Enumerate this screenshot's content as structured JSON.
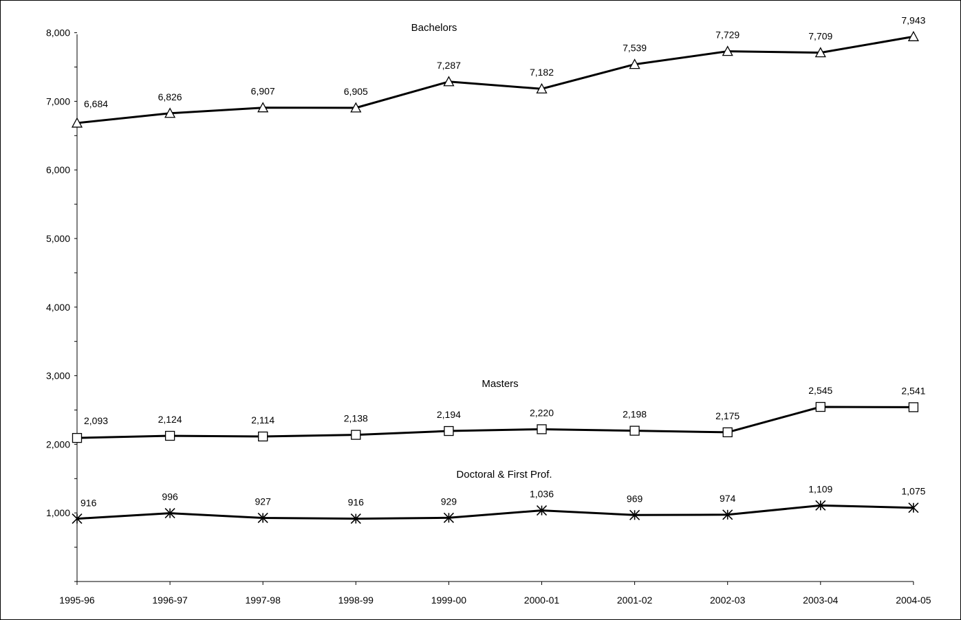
{
  "chart_data": {
    "type": "line",
    "categories": [
      "1995-96",
      "1996-97",
      "1997-98",
      "1998-99",
      "1999-00",
      "2000-01",
      "2001-02",
      "2002-03",
      "2003-04",
      "2004-05"
    ],
    "ylim": [
      0,
      8000
    ],
    "yticks": [
      1000,
      2000,
      3000,
      4000,
      5000,
      6000,
      7000,
      8000
    ],
    "ytick_labels": [
      "1,000",
      "2,000",
      "3,000",
      "4,000",
      "5,000",
      "6,000",
      "7,000",
      "8,000"
    ],
    "grid": false,
    "series": [
      {
        "name": "Bachelors",
        "marker": "triangle",
        "values": [
          6684,
          6826,
          6907,
          6905,
          7287,
          7182,
          7539,
          7729,
          7709,
          7943
        ],
        "labels": [
          "6,684",
          "6,826",
          "6,907",
          "6,905",
          "7,287",
          "7,182",
          "7,539",
          "7,729",
          "7,709",
          "7,943"
        ]
      },
      {
        "name": "Masters",
        "marker": "square",
        "values": [
          2093,
          2124,
          2114,
          2138,
          2194,
          2220,
          2198,
          2175,
          2545,
          2541
        ],
        "labels": [
          "2,093",
          "2,124",
          "2,114",
          "2,138",
          "2,194",
          "2,220",
          "2,198",
          "2,175",
          "2,545",
          "2,541"
        ]
      },
      {
        "name": "Doctoral & First Prof.",
        "marker": "star",
        "values": [
          916,
          996,
          927,
          916,
          929,
          1036,
          969,
          974,
          1109,
          1075
        ],
        "labels": [
          "916",
          "996",
          "927",
          "916",
          "929",
          "1,036",
          "969",
          "974",
          "1,109",
          "1,075"
        ]
      }
    ],
    "line_color": "#000000",
    "marker_fill": "#ffffff"
  }
}
